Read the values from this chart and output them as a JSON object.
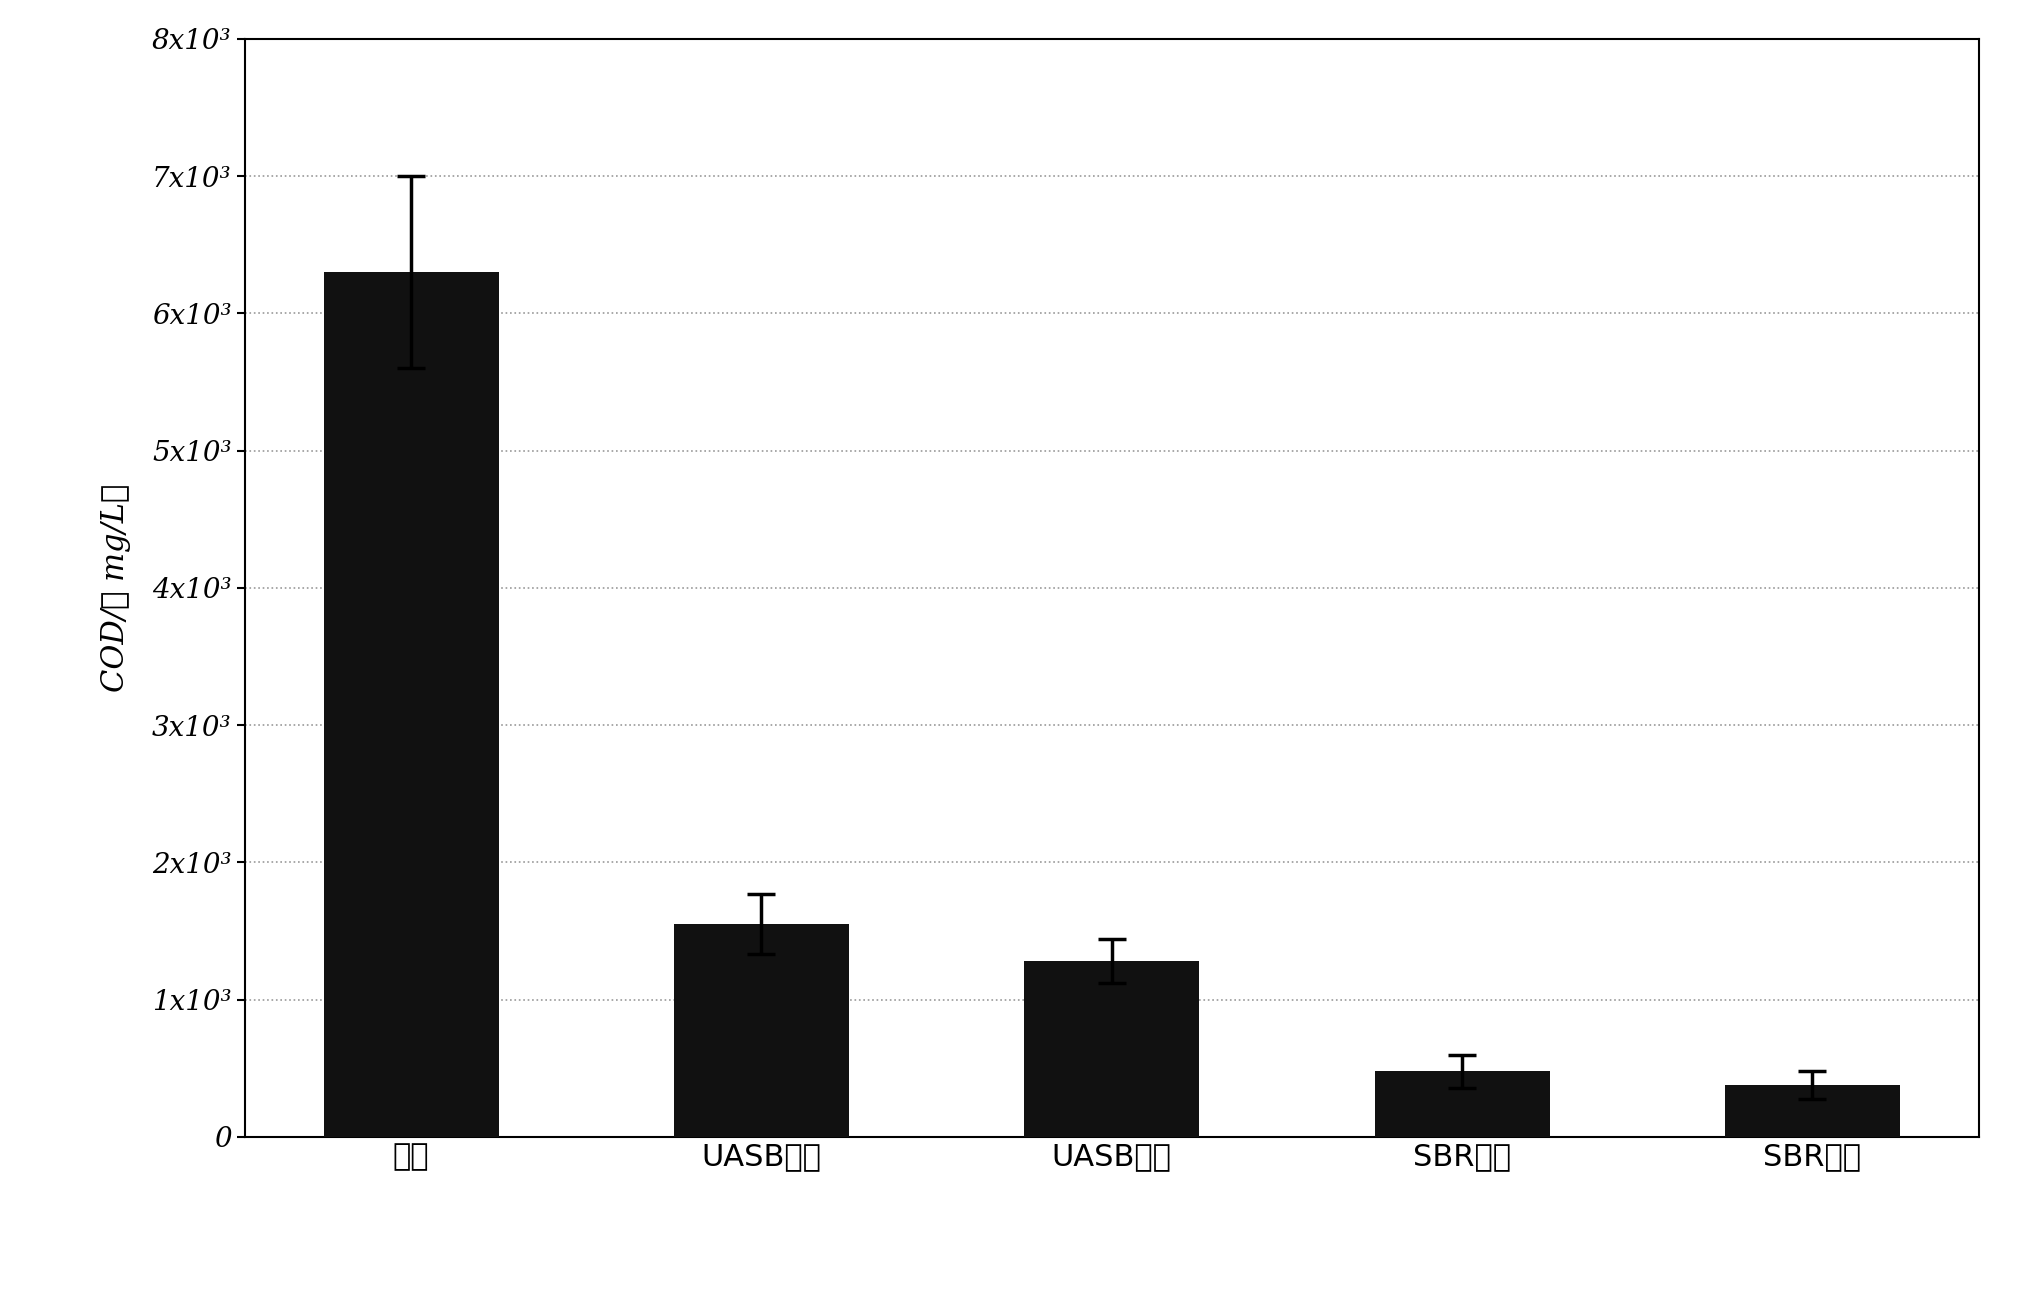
{
  "categories": [
    "原液",
    "UASB进水",
    "UASB出水",
    "SBR进水",
    "SBR出水"
  ],
  "values": [
    6300,
    1550,
    1280,
    480,
    380
  ],
  "errors": [
    700,
    220,
    160,
    120,
    100
  ],
  "bar_color": "#111111",
  "ylabel": "COD/（ mg/L）",
  "ylim": [
    0,
    8000
  ],
  "yticks": [
    0,
    1000,
    2000,
    3000,
    4000,
    5000,
    6000,
    7000,
    8000
  ],
  "ytick_labels": [
    "0",
    "1x10³",
    "2x10³",
    "3x10³",
    "4x10³",
    "5x10³",
    "6x10³",
    "7x10³",
    "8x10³"
  ],
  "background_color": "#ffffff",
  "grid_color": "#999999",
  "bar_width": 0.5,
  "tick_fontsize": 20,
  "ylabel_fontsize": 22,
  "xtick_fontsize": 22
}
